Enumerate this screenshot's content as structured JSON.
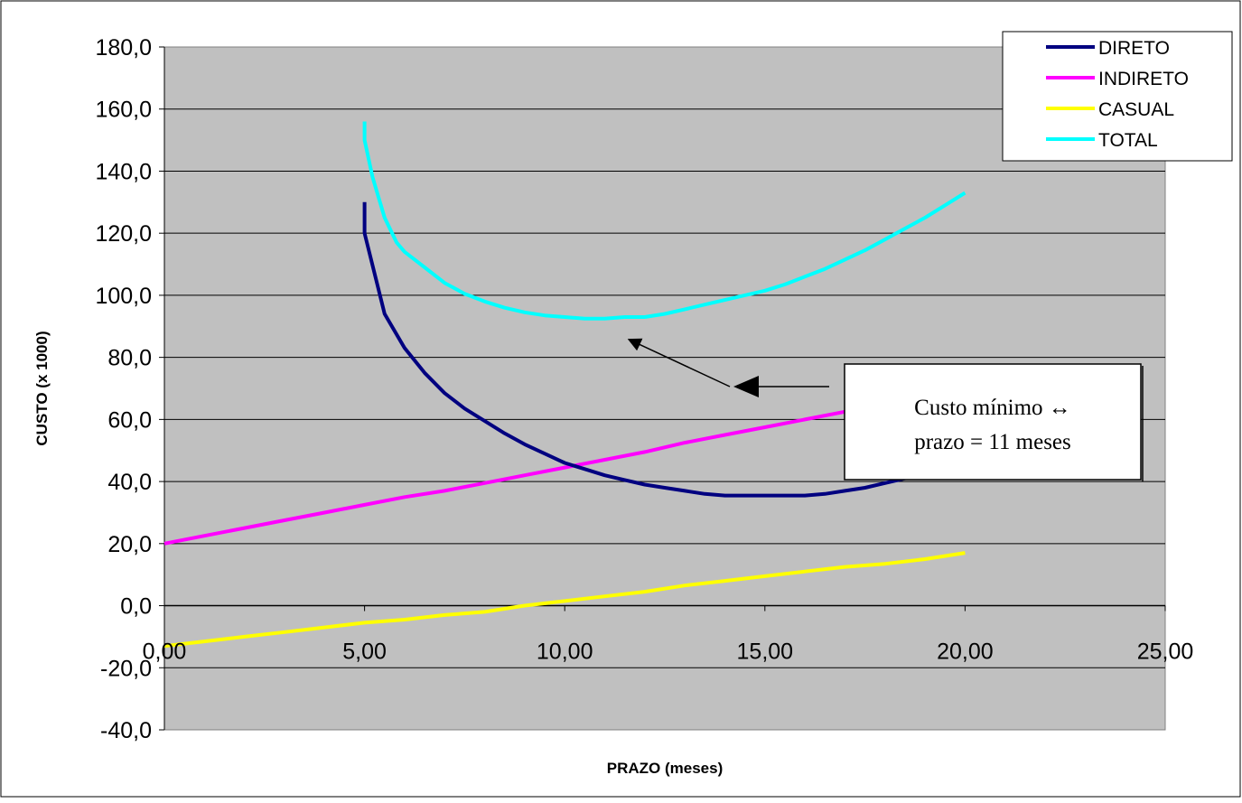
{
  "chart_data": {
    "type": "line",
    "title": "",
    "xlabel": "PRAZO (meses)",
    "ylabel": "CUSTO (x 1000)",
    "xlim": [
      0,
      25
    ],
    "ylim": [
      -40,
      180
    ],
    "x_ticks": [
      0,
      5,
      10,
      15,
      20,
      25
    ],
    "x_tick_labels": [
      "0,00",
      "5,00",
      "10,00",
      "15,00",
      "20,00",
      "25,00"
    ],
    "y_ticks": [
      -40,
      -20,
      0,
      20,
      40,
      60,
      80,
      100,
      120,
      140,
      160,
      180
    ],
    "y_tick_labels": [
      "-40,0",
      "-20,0",
      "0,0",
      "20,0",
      "40,0",
      "60,0",
      "80,0",
      "100,0",
      "120,0",
      "140,0",
      "160,0",
      "180,0"
    ],
    "grid": true,
    "plot_background": "#c0c0c0",
    "legend_position": "top-right",
    "series": [
      {
        "name": "DIRETO",
        "color": "#000080",
        "x": [
          5.0,
          5.0,
          5.5,
          6.0,
          6.5,
          7.0,
          7.5,
          8.0,
          8.5,
          9.0,
          9.5,
          10.0,
          10.5,
          11.0,
          11.5,
          12.0,
          12.5,
          13.0,
          13.5,
          14.0,
          14.5,
          15.0,
          15.5,
          16.0,
          16.5,
          17.0,
          17.5,
          18.0,
          18.5,
          19.0,
          19.5,
          20.0
        ],
        "y": [
          130.0,
          120.0,
          94.0,
          83.0,
          75.0,
          68.5,
          63.5,
          59.5,
          55.5,
          52.0,
          49.0,
          46.0,
          44.0,
          42.0,
          40.5,
          39.0,
          38.0,
          37.0,
          36.0,
          35.5,
          35.5,
          35.5,
          35.5,
          35.5,
          36.0,
          37.0,
          38.0,
          39.5,
          41.0,
          43.0,
          45.5,
          48.0
        ]
      },
      {
        "name": "INDIRETO",
        "color": "#ff00ff",
        "x": [
          0,
          1,
          2,
          3,
          4,
          5,
          6,
          7,
          8,
          9,
          10,
          11,
          12,
          13,
          14,
          15,
          16,
          17,
          18,
          19,
          20
        ],
        "y": [
          20.0,
          22.5,
          25.0,
          27.5,
          30.0,
          32.5,
          35.0,
          37.0,
          39.5,
          42.0,
          44.5,
          47.0,
          49.5,
          52.5,
          55.0,
          57.5,
          60.0,
          62.5,
          65.0,
          68.0,
          70.0
        ]
      },
      {
        "name": "CASUAL",
        "color": "#ffff00",
        "x": [
          0,
          1,
          2,
          3,
          4,
          5,
          6,
          7,
          8,
          9,
          10,
          11,
          12,
          13,
          14,
          15,
          16,
          17,
          18,
          19,
          20
        ],
        "y": [
          -13.0,
          -11.5,
          -10.0,
          -8.5,
          -7.0,
          -5.5,
          -4.5,
          -3.0,
          -2.0,
          0.0,
          1.5,
          3.0,
          4.5,
          6.5,
          8.0,
          9.5,
          11.0,
          12.5,
          13.5,
          15.0,
          17.0
        ]
      },
      {
        "name": "TOTAL",
        "color": "#00ffff",
        "x": [
          5.0,
          5.0,
          5.2,
          5.5,
          5.8,
          6.0,
          6.5,
          7.0,
          7.5,
          8.0,
          8.5,
          9.0,
          9.5,
          10.0,
          10.5,
          11.0,
          11.5,
          12.0,
          12.5,
          13.0,
          13.5,
          14.0,
          14.5,
          15.0,
          15.5,
          16.0,
          16.5,
          17.0,
          17.5,
          18.0,
          18.5,
          19.0,
          19.5,
          20.0
        ],
        "y": [
          156.0,
          150.0,
          138.0,
          125.0,
          117.0,
          114.0,
          109.0,
          104.0,
          100.5,
          98.0,
          96.0,
          94.5,
          93.5,
          93.0,
          92.5,
          92.5,
          93.0,
          93.0,
          94.0,
          95.5,
          97.0,
          98.5,
          100.0,
          101.5,
          103.5,
          106.0,
          108.5,
          111.5,
          114.5,
          118.0,
          121.5,
          125.0,
          129.0,
          133.0
        ]
      }
    ],
    "annotation": {
      "line1": "Custo mínimo ↔",
      "line2": "prazo = 11 meses",
      "arrow_target_x": 11.6,
      "arrow_target_y": 91.0
    }
  }
}
